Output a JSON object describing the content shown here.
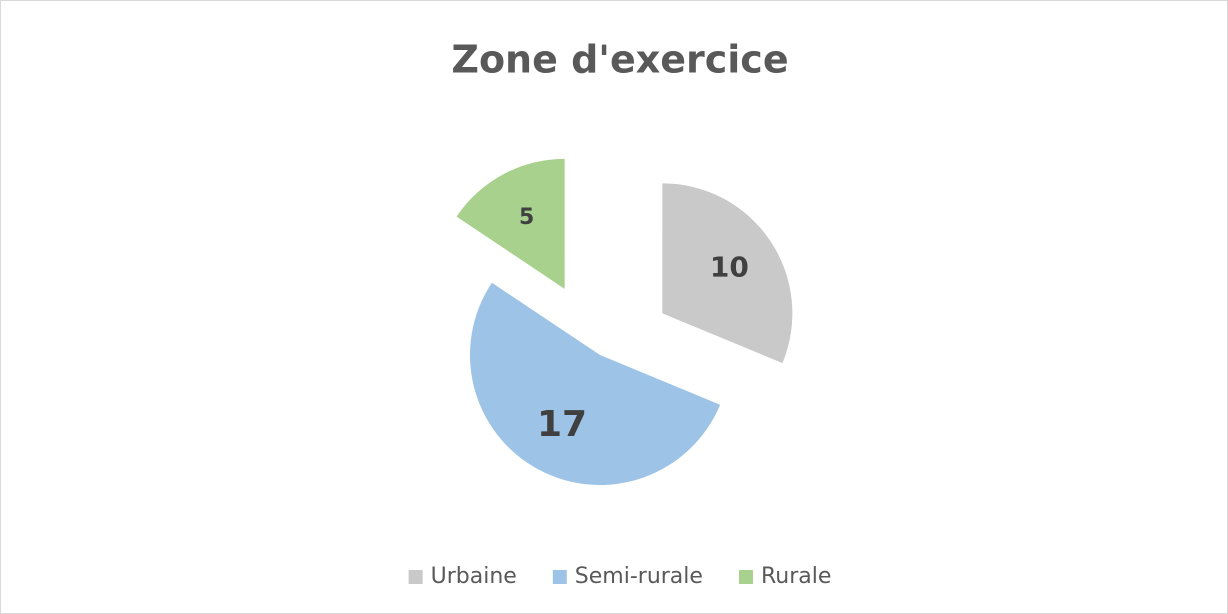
{
  "chart_data": {
    "type": "pie",
    "title": "Zone d'exercice",
    "categories": [
      "Urbaine",
      "Semi-rurale",
      "Rurale"
    ],
    "values": [
      10,
      17,
      5
    ],
    "colors": [
      "#c9c9c9",
      "#9dc3e6",
      "#a9d18e"
    ],
    "legend": "bottom"
  }
}
